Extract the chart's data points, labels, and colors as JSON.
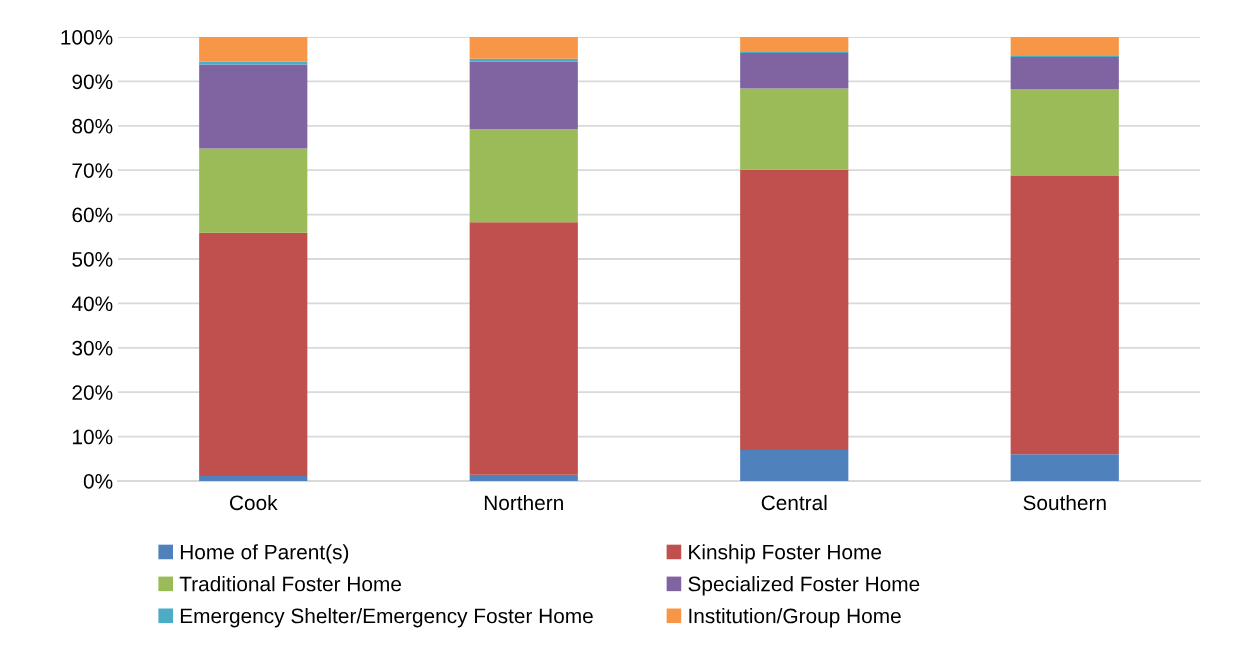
{
  "chart_data": {
    "type": "bar",
    "stacked": true,
    "categories": [
      "Cook",
      "Northern",
      "Central",
      "Southern"
    ],
    "series": [
      {
        "name": "Home of Parent(s)",
        "color": "#4f81bd",
        "values": [
          1.1,
          1.4,
          7.0,
          6.0
        ]
      },
      {
        "name": "Kinship Foster Home",
        "color": "#c0504d",
        "values": [
          54.8,
          56.9,
          63.1,
          62.7
        ]
      },
      {
        "name": "Traditional Foster Home",
        "color": "#9bbb59",
        "values": [
          19.0,
          20.9,
          18.3,
          19.6
        ]
      },
      {
        "name": "Specialized Foster Home",
        "color": "#8064a2",
        "values": [
          18.9,
          15.2,
          8.0,
          7.2
        ]
      },
      {
        "name": "Emergency Shelter/Emergency Foster Home",
        "color": "#4bacc6",
        "values": [
          0.6,
          0.7,
          0.2,
          0.4
        ]
      },
      {
        "name": "Institution/Group Home",
        "color": "#f79646",
        "values": [
          5.6,
          4.9,
          3.4,
          4.1
        ]
      }
    ],
    "ylim": [
      0,
      100
    ],
    "yticks": [
      {
        "value": 0,
        "label": "0%"
      },
      {
        "value": 10,
        "label": "10%"
      },
      {
        "value": 20,
        "label": "20%"
      },
      {
        "value": 30,
        "label": "30%"
      },
      {
        "value": 40,
        "label": "40%"
      },
      {
        "value": 50,
        "label": "50%"
      },
      {
        "value": 60,
        "label": "60%"
      },
      {
        "value": 70,
        "label": "70%"
      },
      {
        "value": 80,
        "label": "80%"
      },
      {
        "value": 90,
        "label": "90%"
      },
      {
        "value": 100,
        "label": "100%"
      }
    ],
    "grid": "y",
    "legend": "bottom"
  }
}
